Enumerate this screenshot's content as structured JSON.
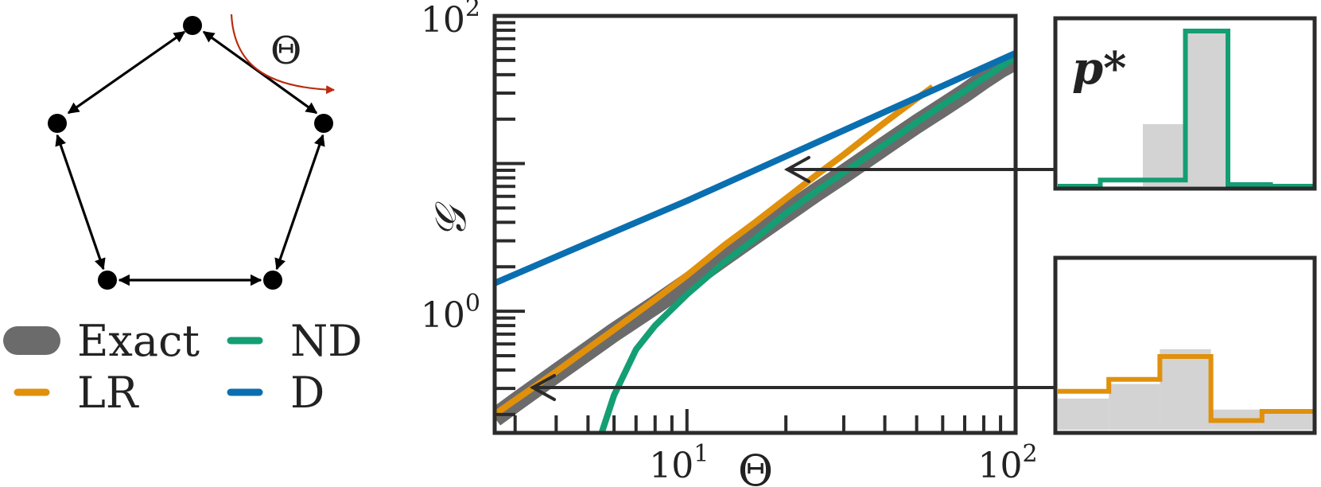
{
  "colors": {
    "exact": "#6b6b6b",
    "lr": "#e0900b",
    "nd": "#149e73",
    "d": "#0a6fb0",
    "axis": "#2b2b2b",
    "arrow": "#bb2b10",
    "hist_bg": "#d3d3d3",
    "node": "#000000"
  },
  "graph": {
    "theta_label": "Θ",
    "nodes": [
      "n1",
      "n2",
      "n3",
      "n4",
      "n5"
    ]
  },
  "legend": {
    "items": [
      {
        "key": "exact",
        "label": "Exact"
      },
      {
        "key": "nd",
        "label": "ND"
      },
      {
        "key": "lr",
        "label": "LR"
      },
      {
        "key": "d",
        "label": "D"
      }
    ]
  },
  "chart_data": [
    {
      "type": "line",
      "title": "",
      "xlabel": "Θ",
      "ylabel": "𝒢",
      "xscale": "log",
      "yscale": "log",
      "xlim": [
        2.6,
        100
      ],
      "ylim": [
        0.15,
        100
      ],
      "xticks": [
        {
          "value": 10,
          "base": "10",
          "exp": "1"
        },
        {
          "value": 100,
          "base": "10",
          "exp": "2"
        }
      ],
      "yticks": [
        {
          "value": 1,
          "base": "10",
          "exp": "0"
        },
        {
          "value": 100,
          "base": "10",
          "exp": "2"
        }
      ],
      "grid": false,
      "series": [
        {
          "name": "Exact",
          "key": "exact",
          "x": [
            2.6,
            3,
            4,
            5,
            6,
            8,
            10,
            13,
            16,
            20,
            25,
            30,
            40,
            50,
            60,
            70,
            80,
            90,
            100
          ],
          "y": [
            0.19,
            0.24,
            0.38,
            0.54,
            0.72,
            1.1,
            1.55,
            2.35,
            3.25,
            4.6,
            6.5,
            8.5,
            13.2,
            18.5,
            24,
            30,
            37,
            44,
            50
          ]
        },
        {
          "name": "LR",
          "key": "lr",
          "x": [
            2.6,
            3,
            4,
            5,
            6,
            8,
            10,
            13,
            16,
            20,
            25,
            30,
            40,
            50,
            56
          ],
          "y": [
            0.2,
            0.25,
            0.39,
            0.56,
            0.75,
            1.2,
            1.75,
            2.8,
            3.95,
            5.8,
            8.5,
            11.5,
            19,
            27.5,
            33
          ]
        },
        {
          "name": "ND",
          "key": "nd",
          "x": [
            5.5,
            6,
            7,
            8,
            10,
            13,
            16,
            20,
            25,
            30,
            40,
            50,
            60,
            70,
            80,
            90,
            100
          ],
          "y": [
            0.15,
            0.27,
            0.55,
            0.8,
            1.3,
            2.15,
            3.05,
            4.6,
            6.6,
            8.7,
            13.5,
            19,
            25,
            31,
            38,
            45,
            53
          ]
        },
        {
          "name": "D",
          "key": "d",
          "x": [
            2.6,
            5,
            10,
            20,
            30,
            50,
            100
          ],
          "y": [
            1.55,
            2.9,
            5.6,
            11.2,
            16.8,
            28,
            56
          ]
        }
      ]
    },
    {
      "type": "bar",
      "title": "p*",
      "series": [
        {
          "name": "background",
          "values": [
            0,
            0,
            0.4,
            1,
            0,
            0
          ]
        },
        {
          "name": "ND",
          "values": [
            0,
            0.04,
            0.04,
            1,
            0.01,
            0
          ]
        }
      ]
    },
    {
      "type": "bar",
      "title": "",
      "series": [
        {
          "name": "background",
          "values": [
            0.34,
            0.5,
            0.88,
            0.22,
            0.18
          ]
        },
        {
          "name": "LR",
          "values": [
            0.42,
            0.55,
            0.8,
            0.1,
            0.2
          ]
        }
      ]
    }
  ]
}
